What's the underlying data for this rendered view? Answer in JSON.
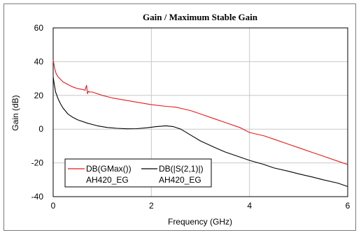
{
  "chart_data": {
    "type": "line",
    "title": "Gain / Maximum Stable Gain",
    "xlabel": "Frequency (GHz)",
    "ylabel": "Gain (dB)",
    "xlim": [
      0,
      6
    ],
    "ylim": [
      -40,
      60
    ],
    "x_ticks": [
      0,
      2,
      4,
      6
    ],
    "y_ticks": [
      60,
      40,
      20,
      0,
      -20,
      -40
    ],
    "x_tick_labels": [
      "0",
      "2",
      "4",
      "6"
    ],
    "y_tick_labels": [
      "60",
      "40",
      "20",
      "0",
      "-20",
      "-40"
    ],
    "grid": true,
    "legend_position": "bottom-left",
    "series": [
      {
        "name": "DB(GMax())",
        "subname": "AH420_EG",
        "color": "#e8191b",
        "x": [
          0.0,
          0.03,
          0.06,
          0.1,
          0.15,
          0.2,
          0.3,
          0.4,
          0.5,
          0.6,
          0.65,
          0.68,
          0.7,
          0.72,
          0.75,
          0.8,
          1.0,
          1.2,
          1.5,
          1.8,
          2.0,
          2.3,
          2.5,
          2.8,
          3.0,
          3.3,
          3.5,
          3.8,
          4.0,
          4.3,
          4.5,
          4.8,
          5.0,
          5.3,
          5.5,
          5.8,
          6.0
        ],
        "y": [
          41,
          36,
          33,
          31,
          29.5,
          28,
          26.5,
          25,
          24,
          23.5,
          23,
          26,
          21,
          22.5,
          22,
          22,
          20,
          18.5,
          17,
          15.5,
          14.5,
          13.5,
          13,
          11,
          9,
          6,
          4,
          1,
          -2,
          -4,
          -6,
          -9,
          -11,
          -14,
          -16,
          -19,
          -21
        ]
      },
      {
        "name": "DB(|S(2,1)|)",
        "subname": "AH420_EG",
        "color": "#000000",
        "x": [
          0.0,
          0.02,
          0.05,
          0.1,
          0.15,
          0.2,
          0.3,
          0.4,
          0.5,
          0.7,
          0.9,
          1.1,
          1.3,
          1.5,
          1.7,
          1.9,
          2.1,
          2.3,
          2.45,
          2.6,
          2.8,
          3.0,
          3.3,
          3.5,
          3.8,
          4.0,
          4.3,
          4.5,
          4.8,
          5.0,
          5.3,
          5.5,
          5.8,
          6.0
        ],
        "y": [
          31,
          27,
          22,
          18,
          15,
          12.5,
          9,
          7,
          5.5,
          3.5,
          2,
          1,
          0.5,
          0.2,
          0.3,
          0.8,
          1.5,
          2,
          1.5,
          0,
          -3.5,
          -7,
          -11,
          -13.5,
          -16.5,
          -18.5,
          -21,
          -23,
          -25,
          -26.5,
          -28.5,
          -30,
          -32,
          -34
        ]
      }
    ]
  }
}
